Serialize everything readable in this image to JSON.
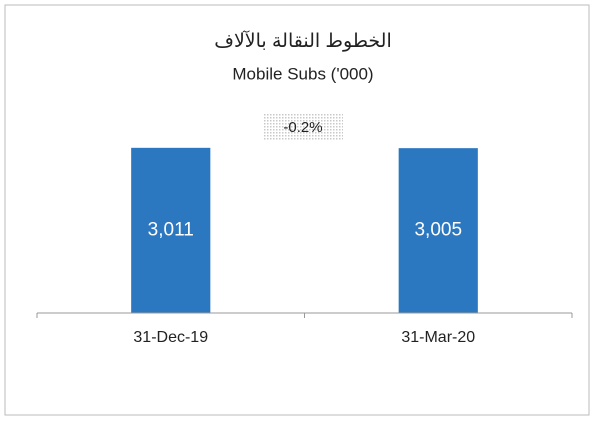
{
  "chart_data": {
    "type": "bar",
    "title": "الخطوط النقالة بالآلاف",
    "subtitle": "Mobile Subs ('000)",
    "annotation": "-0.2%",
    "categories": [
      "31-Dec-19",
      "31-Mar-20"
    ],
    "values": [
      3011,
      3005
    ],
    "value_labels": [
      "3,011",
      "3,005"
    ],
    "color": "#2b78c0",
    "ylim": [
      0,
      3500
    ]
  }
}
